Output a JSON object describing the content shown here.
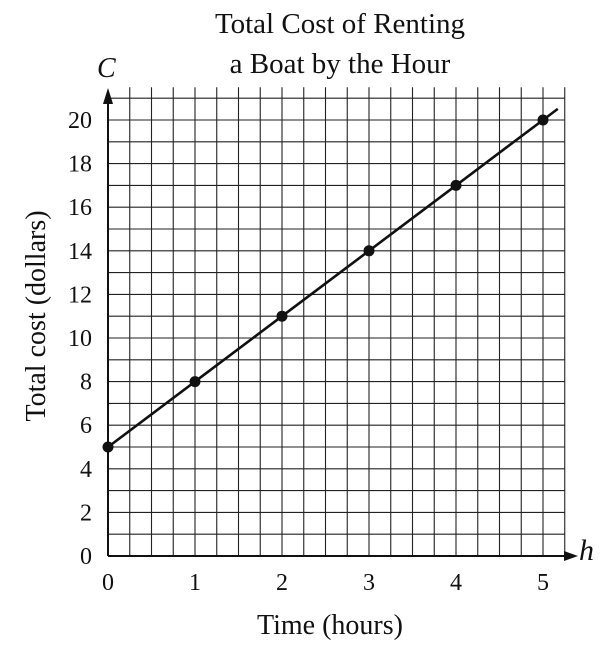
{
  "chart_data": {
    "type": "line",
    "title": "Total Cost of Renting a Boat by the Hour",
    "title_lines": [
      "Total Cost of Renting",
      "a Boat by the Hour"
    ],
    "xlabel": "Time (hours)",
    "ylabel": "Total cost (dollars)",
    "x_variable": "h",
    "y_variable": "C",
    "xlim": [
      0,
      5
    ],
    "ylim": [
      0,
      20
    ],
    "x_ticks": [
      "0",
      "1",
      "2",
      "3",
      "4",
      "5"
    ],
    "y_ticks": [
      "0",
      "2",
      "4",
      "6",
      "8",
      "10",
      "12",
      "14",
      "16",
      "18",
      "20"
    ],
    "grid": true,
    "series": [
      {
        "x": [
          0,
          1,
          2,
          3,
          4,
          5
        ],
        "y": [
          5,
          8,
          11,
          14,
          17,
          20
        ]
      }
    ]
  }
}
